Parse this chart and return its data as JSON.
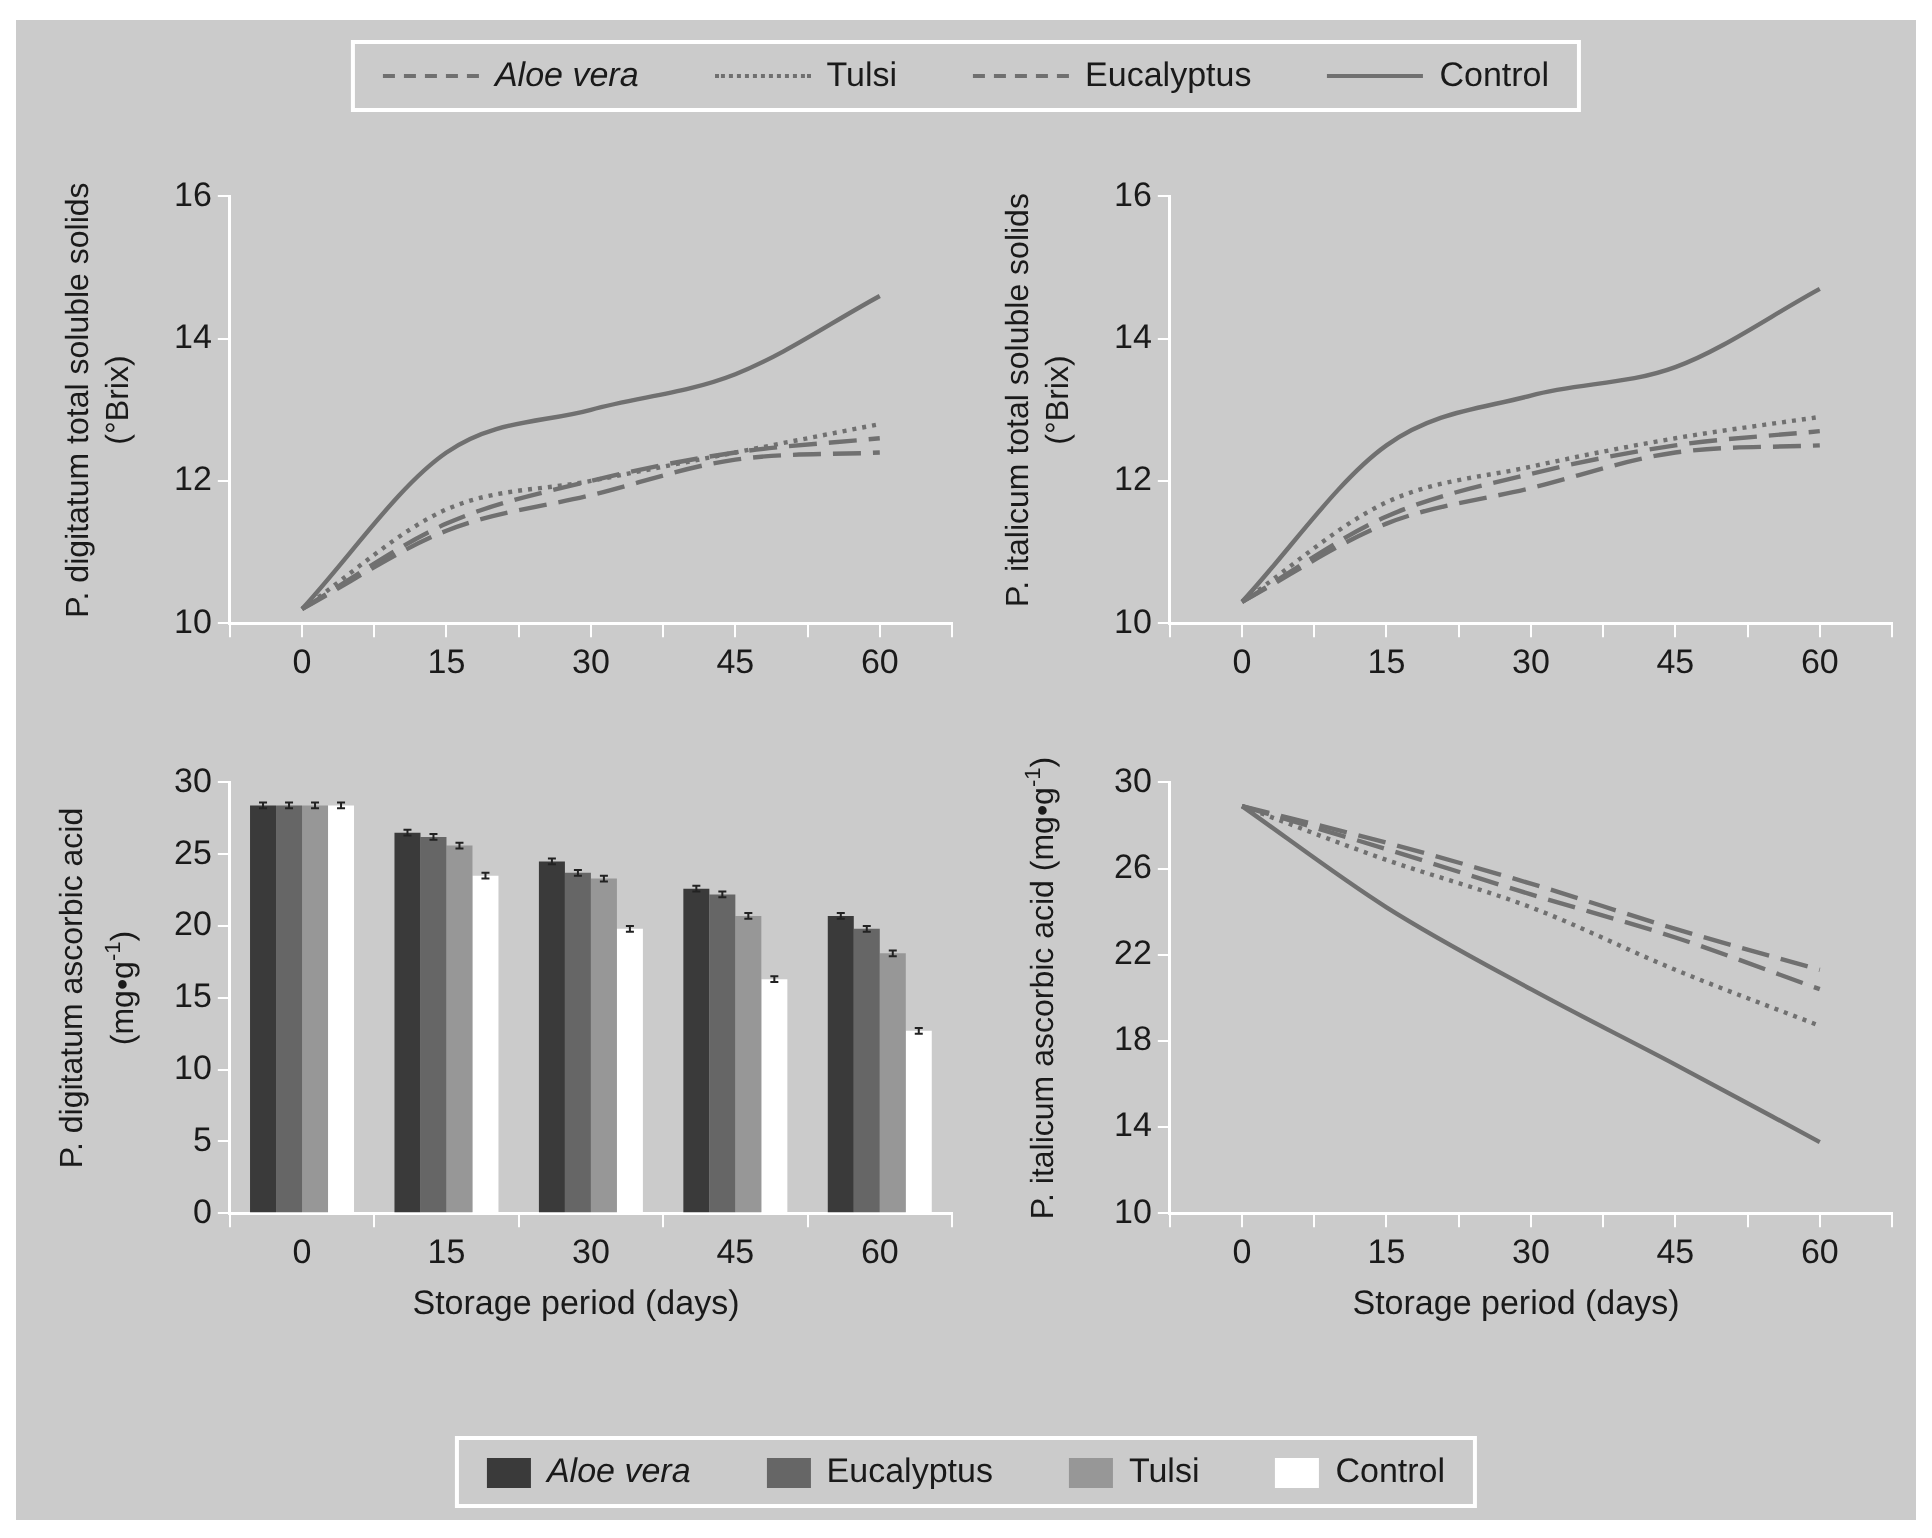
{
  "chart_data": [
    {
      "type": "line",
      "ylabel": "P. digitatum total soluble solids (°Brix)",
      "x": [
        0,
        15,
        30,
        45,
        60
      ],
      "xlim": [
        -7.5,
        67.5
      ],
      "xticks": [
        {
          "value": -7.5,
          "label": null
        },
        0,
        {
          "value": 7.5,
          "label": null
        },
        15,
        {
          "value": 22.5,
          "label": null
        },
        30,
        {
          "value": 37.5,
          "label": null
        },
        45,
        {
          "value": 52.5,
          "label": null
        },
        60,
        {
          "value": 67.5,
          "label": null
        }
      ],
      "ylim": [
        10,
        16
      ],
      "yticks": [
        10,
        12,
        14,
        16
      ],
      "grid": false,
      "legend": "top",
      "marker": "none",
      "series": [
        {
          "name": "Aloe vera",
          "color": "#707070",
          "line_style": "dashed",
          "values": [
            10.2,
            11.3,
            11.8,
            12.3,
            12.4
          ]
        },
        {
          "name": "Tulsi",
          "color": "#707070",
          "line_style": "dotted",
          "values": [
            10.2,
            11.6,
            12.0,
            12.4,
            12.8
          ]
        },
        {
          "name": "Eucalyptus",
          "color": "#707070",
          "line_style": "dashed",
          "values": [
            10.2,
            11.4,
            12.0,
            12.4,
            12.6
          ]
        },
        {
          "name": "Control",
          "color": "#707070",
          "line_style": "solid",
          "values": [
            10.2,
            12.4,
            13.0,
            13.5,
            14.6
          ]
        }
      ]
    },
    {
      "type": "line",
      "ylabel": "P. italicum total soluble solids (°Brix)",
      "x": [
        0,
        15,
        30,
        45,
        60
      ],
      "xlim": [
        -7.5,
        67.5
      ],
      "xticks": [
        {
          "value": -7.5,
          "label": null
        },
        0,
        {
          "value": 7.5,
          "label": null
        },
        15,
        {
          "value": 22.5,
          "label": null
        },
        30,
        {
          "value": 37.5,
          "label": null
        },
        45,
        {
          "value": 52.5,
          "label": null
        },
        60,
        {
          "value": 67.5,
          "label": null
        }
      ],
      "ylim": [
        10,
        16
      ],
      "yticks": [
        10,
        12,
        14,
        16
      ],
      "grid": false,
      "marker": "none",
      "series": [
        {
          "color": "#707070",
          "line_style": "dashed",
          "values": [
            10.3,
            11.4,
            11.9,
            12.4,
            12.5
          ]
        },
        {
          "color": "#707070",
          "line_style": "dotted",
          "values": [
            10.3,
            11.7,
            12.2,
            12.6,
            12.9
          ]
        },
        {
          "color": "#707070",
          "line_style": "dashed",
          "values": [
            10.3,
            11.5,
            12.1,
            12.5,
            12.7
          ]
        },
        {
          "color": "#707070",
          "line_style": "solid",
          "values": [
            10.3,
            12.5,
            13.2,
            13.6,
            14.7
          ]
        }
      ]
    },
    {
      "type": "bar",
      "ylabel": "P. digitatum ascorbic acid (mg•g$^{-1}$)",
      "xlabel": "Storage period (days)",
      "categories": [
        "0",
        "15",
        "30",
        "45",
        "60"
      ],
      "ylim": [
        0,
        30
      ],
      "yticks": [
        0,
        5,
        10,
        15,
        20,
        25,
        30
      ],
      "grid": false,
      "legend": "bottom",
      "series": [
        {
          "name": "Aloe vera",
          "color": "#3a3a3a",
          "values": [
            28.4,
            26.5,
            24.5,
            22.6,
            20.7
          ],
          "errors": [
            0.2,
            0.2,
            0.2,
            0.2,
            0.2
          ]
        },
        {
          "name": "Eucalyptus",
          "color": "#666666",
          "values": [
            28.4,
            26.2,
            23.7,
            22.2,
            19.8
          ],
          "errors": [
            0.2,
            0.2,
            0.2,
            0.2,
            0.2
          ]
        },
        {
          "name": "Tulsi",
          "color": "#979797",
          "values": [
            28.4,
            25.6,
            23.3,
            20.7,
            18.1
          ],
          "errors": [
            0.2,
            0.2,
            0.2,
            0.2,
            0.2
          ]
        },
        {
          "name": "Control",
          "color": "#ffffff",
          "values": [
            28.4,
            23.5,
            19.8,
            16.3,
            12.7
          ],
          "errors": [
            0.2,
            0.2,
            0.2,
            0.2,
            0.2
          ]
        }
      ]
    },
    {
      "type": "line",
      "ylabel": "P. italicum ascorbic acid (mg•g$^{-1}$)",
      "xlabel": "Storage period (days)",
      "x": [
        0,
        15,
        30,
        45,
        60
      ],
      "xlim": [
        -7.5,
        67.5
      ],
      "xticks": [
        {
          "value": -7.5,
          "label": null
        },
        0,
        {
          "value": 7.5,
          "label": null
        },
        15,
        {
          "value": 22.5,
          "label": null
        },
        30,
        {
          "value": 37.5,
          "label": null
        },
        45,
        {
          "value": 52.5,
          "label": null
        },
        60,
        {
          "value": 67.5,
          "label": null
        }
      ],
      "ylim": [
        10,
        30
      ],
      "yticks": [
        10,
        14,
        18,
        22,
        26,
        30
      ],
      "grid": false,
      "marker": "none",
      "series": [
        {
          "color": "#707070",
          "line_style": "dashed",
          "values": [
            28.9,
            27.2,
            25.3,
            23.2,
            21.3
          ]
        },
        {
          "color": "#707070",
          "line_style": "dotted",
          "values": [
            28.9,
            26.4,
            24.2,
            21.3,
            18.7
          ]
        },
        {
          "color": "#707070",
          "line_style": "dashed",
          "values": [
            28.9,
            26.9,
            24.8,
            22.8,
            20.4
          ]
        },
        {
          "color": "#707070",
          "line_style": "solid",
          "values": [
            28.9,
            24.2,
            20.4,
            16.9,
            13.3
          ]
        }
      ]
    }
  ]
}
